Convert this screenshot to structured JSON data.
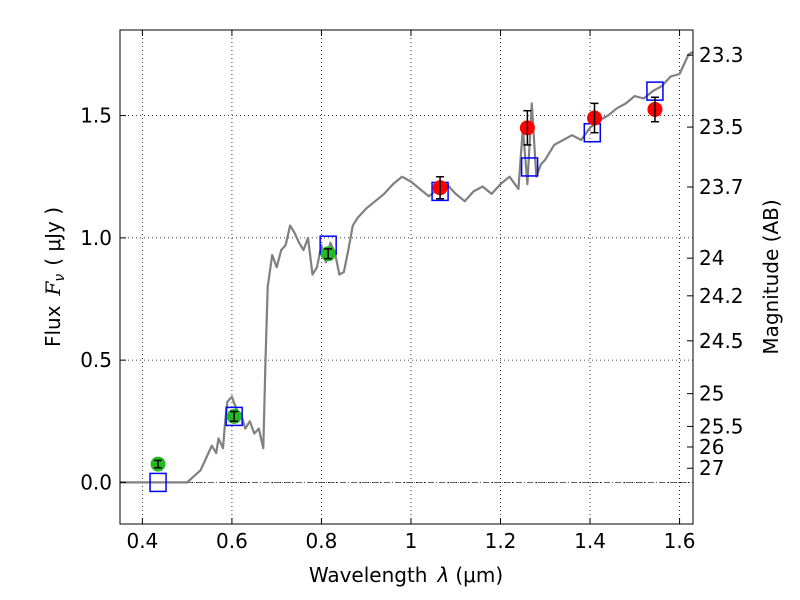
{
  "chart_data": {
    "type": "scatter",
    "xlabel": "Wavelength  λ (μm)",
    "ylabel": "Flux  F_ν  ( μJy )",
    "ylabel_parts": {
      "flux": "Flux",
      "symbol": "F",
      "subscript": "ν",
      "unit": "( μJy )"
    },
    "xlabel_parts": {
      "text": "Wavelength",
      "symbol": "λ",
      "unit": "(μm)"
    },
    "right_label": "Magnitude (AB)",
    "xlim": [
      0.35,
      1.63
    ],
    "ylim": [
      -0.17,
      1.85
    ],
    "grid": true,
    "xticks": [
      0.4,
      0.6,
      0.8,
      1.0,
      1.2,
      1.4,
      1.6
    ],
    "xtick_labels": [
      "0.4",
      "0.6",
      "0.8",
      "1",
      "1.2",
      "1.4",
      "1.6"
    ],
    "yticks": [
      0.0,
      0.5,
      1.0,
      1.5
    ],
    "ytick_labels": [
      "0.0",
      "0.5",
      "1.0",
      "1.5"
    ],
    "magnitude_ticks": [
      {
        "label": "23.3",
        "y": 1.747
      },
      {
        "label": "23.5",
        "y": 1.453
      },
      {
        "label": "23.7",
        "y": 1.208
      },
      {
        "label": "24",
        "y": 0.917
      },
      {
        "label": "24.2",
        "y": 0.763
      },
      {
        "label": "24.5",
        "y": 0.579
      },
      {
        "label": "25",
        "y": 0.363
      },
      {
        "label": "25.5",
        "y": 0.229
      },
      {
        "label": "26",
        "y": 0.145
      },
      {
        "label": "27",
        "y": 0.058
      }
    ],
    "series": [
      {
        "role": "template-spectrum",
        "color": "#808080",
        "x": [
          0.35,
          0.4,
          0.45,
          0.5,
          0.53,
          0.545,
          0.555,
          0.565,
          0.57,
          0.58,
          0.585,
          0.59,
          0.6,
          0.61,
          0.62,
          0.63,
          0.64,
          0.65,
          0.66,
          0.67,
          0.675,
          0.68,
          0.69,
          0.7,
          0.71,
          0.72,
          0.73,
          0.74,
          0.75,
          0.76,
          0.77,
          0.78,
          0.79,
          0.8,
          0.81,
          0.82,
          0.83,
          0.84,
          0.85,
          0.86,
          0.87,
          0.88,
          0.9,
          0.92,
          0.94,
          0.96,
          0.98,
          1.0,
          1.02,
          1.04,
          1.06,
          1.08,
          1.1,
          1.12,
          1.14,
          1.16,
          1.18,
          1.2,
          1.22,
          1.24,
          1.25,
          1.26,
          1.27,
          1.28,
          1.29,
          1.3,
          1.32,
          1.34,
          1.36,
          1.38,
          1.4,
          1.42,
          1.44,
          1.46,
          1.48,
          1.5,
          1.52,
          1.54,
          1.56,
          1.58,
          1.6,
          1.62,
          1.63
        ],
        "y": [
          0.0,
          0.0,
          0.0,
          0.0,
          0.05,
          0.11,
          0.15,
          0.12,
          0.18,
          0.14,
          0.25,
          0.33,
          0.35,
          0.3,
          0.28,
          0.22,
          0.25,
          0.2,
          0.22,
          0.14,
          0.5,
          0.8,
          0.93,
          0.88,
          0.95,
          0.97,
          1.05,
          1.02,
          0.98,
          0.95,
          1.0,
          0.85,
          0.88,
          0.97,
          0.9,
          0.98,
          0.94,
          0.85,
          0.86,
          0.95,
          1.05,
          1.08,
          1.12,
          1.15,
          1.18,
          1.22,
          1.25,
          1.23,
          1.2,
          1.17,
          1.2,
          1.22,
          1.18,
          1.15,
          1.19,
          1.21,
          1.18,
          1.22,
          1.25,
          1.2,
          1.45,
          1.22,
          1.55,
          1.25,
          1.3,
          1.32,
          1.38,
          1.4,
          1.42,
          1.4,
          1.45,
          1.48,
          1.5,
          1.53,
          1.55,
          1.58,
          1.57,
          1.6,
          1.62,
          1.66,
          1.67,
          1.75,
          1.76
        ]
      },
      {
        "role": "model-photometry",
        "color": "#0000ff",
        "marker": "open-square",
        "x": [
          0.435,
          0.605,
          0.815,
          1.065,
          1.265,
          1.405,
          1.545
        ],
        "y": [
          0.0,
          0.27,
          0.97,
          1.19,
          1.29,
          1.43,
          1.6
        ]
      },
      {
        "role": "observed-optical",
        "color": "#22bb22",
        "marker": "circle",
        "x": [
          0.435,
          0.605,
          0.815
        ],
        "y": [
          0.075,
          0.27,
          0.935
        ],
        "yerr": [
          0.015,
          0.02,
          0.02
        ]
      },
      {
        "role": "observed-nir",
        "color": "#ff0000",
        "marker": "circle",
        "x": [
          1.065,
          1.26,
          1.41,
          1.545
        ],
        "y": [
          1.205,
          1.45,
          1.49,
          1.525
        ],
        "yerr": [
          0.045,
          0.07,
          0.06,
          0.05
        ]
      }
    ]
  }
}
